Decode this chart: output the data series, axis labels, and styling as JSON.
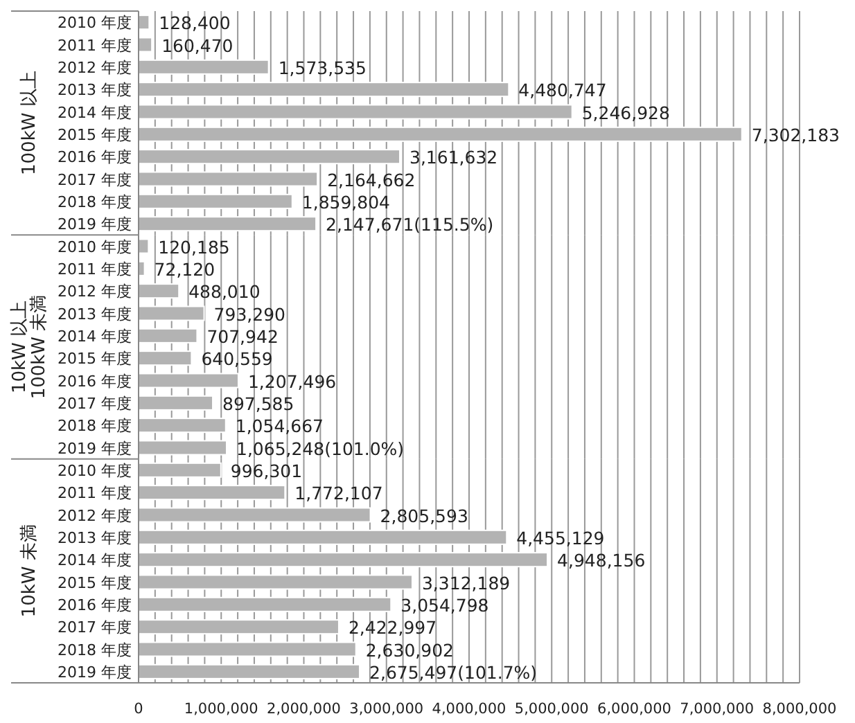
{
  "chart_data": [
    {
      "type": "bar",
      "orientation": "horizontal",
      "ylabel": "100kW 以上",
      "color": "#b3b3b3",
      "grid": "x",
      "tick_labels": "y",
      "categories": [
        "2010 年度",
        "2011 年度",
        "2012 年度",
        "2013 年度",
        "2014 年度",
        "2015 年度",
        "2016 年度",
        "2017 年度",
        "2018 年度",
        "2019 年度"
      ],
      "values": [
        128400,
        160470,
        1573535,
        4480747,
        5246928,
        7302183,
        3161632,
        2164662,
        1859804,
        2147671
      ],
      "value_labels": [
        "128,400",
        "160,470",
        "1,573,535",
        "4,480,747",
        "5,246,928",
        "7,302,183",
        "3,161,632",
        "2,164,662",
        "1,859,804",
        "2,147,671(115.5%)"
      ],
      "xlim": [
        0,
        8000000
      ],
      "xticks": [
        {
          "value": 0,
          "label": null
        },
        {
          "value": 200000,
          "label": null
        },
        {
          "value": 400000,
          "label": null
        },
        {
          "value": 600000,
          "label": null
        },
        {
          "value": 800000,
          "label": null
        },
        {
          "value": 1000000,
          "label": null
        },
        {
          "value": 1200000,
          "label": null
        },
        {
          "value": 1400000,
          "label": null
        },
        {
          "value": 1600000,
          "label": null
        },
        {
          "value": 1800000,
          "label": null
        },
        {
          "value": 2000000,
          "label": null
        },
        {
          "value": 2200000,
          "label": null
        },
        {
          "value": 2400000,
          "label": null
        },
        {
          "value": 2600000,
          "label": null
        },
        {
          "value": 2800000,
          "label": null
        },
        {
          "value": 3000000,
          "label": null
        },
        {
          "value": 3200000,
          "label": null
        },
        {
          "value": 3400000,
          "label": null
        },
        {
          "value": 3600000,
          "label": null
        },
        {
          "value": 3800000,
          "label": null
        },
        {
          "value": 4000000,
          "label": null
        },
        {
          "value": 4200000,
          "label": null
        },
        {
          "value": 4400000,
          "label": null
        },
        {
          "value": 4600000,
          "label": null
        },
        {
          "value": 4800000,
          "label": null
        },
        {
          "value": 5000000,
          "label": null
        },
        {
          "value": 5200000,
          "label": null
        },
        {
          "value": 5400000,
          "label": null
        },
        {
          "value": 5600000,
          "label": null
        },
        {
          "value": 5800000,
          "label": null
        },
        {
          "value": 6000000,
          "label": null
        },
        {
          "value": 6200000,
          "label": null
        },
        {
          "value": 6400000,
          "label": null
        },
        {
          "value": 6600000,
          "label": null
        },
        {
          "value": 6800000,
          "label": null
        },
        {
          "value": 7000000,
          "label": null
        },
        {
          "value": 7200000,
          "label": null
        },
        {
          "value": 7400000,
          "label": null
        },
        {
          "value": 7600000,
          "label": null
        },
        {
          "value": 7800000,
          "label": null
        },
        {
          "value": 8000000,
          "label": null
        }
      ]
    },
    {
      "type": "bar",
      "orientation": "horizontal",
      "ylabel": "10kW 以上\n100kW 未満",
      "color": "#b3b3b3",
      "grid": "x",
      "tick_labels": "y",
      "categories": [
        "2010 年度",
        "2011 年度",
        "2012 年度",
        "2013 年度",
        "2014 年度",
        "2015 年度",
        "2016 年度",
        "2017 年度",
        "2018 年度",
        "2019 年度"
      ],
      "values": [
        120185,
        72120,
        488010,
        793290,
        707942,
        640559,
        1207496,
        897585,
        1054667,
        1065248
      ],
      "value_labels": [
        "120,185",
        "72,120",
        "488,010",
        "793,290",
        "707,942",
        "640,559",
        "1,207,496",
        "897,585",
        "1,054,667",
        "1,065,248(101.0%)"
      ],
      "xlim": [
        0,
        8000000
      ],
      "xticks": [
        {
          "value": 0,
          "label": null
        },
        {
          "value": 200000,
          "label": null
        },
        {
          "value": 400000,
          "label": null
        },
        {
          "value": 600000,
          "label": null
        },
        {
          "value": 800000,
          "label": null
        },
        {
          "value": 1000000,
          "label": null
        },
        {
          "value": 1200000,
          "label": null
        },
        {
          "value": 1400000,
          "label": null
        },
        {
          "value": 1600000,
          "label": null
        },
        {
          "value": 1800000,
          "label": null
        },
        {
          "value": 2000000,
          "label": null
        },
        {
          "value": 2200000,
          "label": null
        },
        {
          "value": 2400000,
          "label": null
        },
        {
          "value": 2600000,
          "label": null
        },
        {
          "value": 2800000,
          "label": null
        },
        {
          "value": 3000000,
          "label": null
        },
        {
          "value": 3200000,
          "label": null
        },
        {
          "value": 3400000,
          "label": null
        },
        {
          "value": 3600000,
          "label": null
        },
        {
          "value": 3800000,
          "label": null
        },
        {
          "value": 4000000,
          "label": null
        },
        {
          "value": 4200000,
          "label": null
        },
        {
          "value": 4400000,
          "label": null
        },
        {
          "value": 4600000,
          "label": null
        },
        {
          "value": 4800000,
          "label": null
        },
        {
          "value": 5000000,
          "label": null
        },
        {
          "value": 5200000,
          "label": null
        },
        {
          "value": 5400000,
          "label": null
        },
        {
          "value": 5600000,
          "label": null
        },
        {
          "value": 5800000,
          "label": null
        },
        {
          "value": 6000000,
          "label": null
        },
        {
          "value": 6200000,
          "label": null
        },
        {
          "value": 6400000,
          "label": null
        },
        {
          "value": 6600000,
          "label": null
        },
        {
          "value": 6800000,
          "label": null
        },
        {
          "value": 7000000,
          "label": null
        },
        {
          "value": 7200000,
          "label": null
        },
        {
          "value": 7400000,
          "label": null
        },
        {
          "value": 7600000,
          "label": null
        },
        {
          "value": 7800000,
          "label": null
        },
        {
          "value": 8000000,
          "label": null
        }
      ]
    },
    {
      "type": "bar",
      "orientation": "horizontal",
      "ylabel": "10kW 未満",
      "color": "#b3b3b3",
      "grid": "x",
      "categories": [
        "2010 年度",
        "2011 年度",
        "2012 年度",
        "2013 年度",
        "2014 年度",
        "2015 年度",
        "2016 年度",
        "2017 年度",
        "2018 年度",
        "2019 年度"
      ],
      "values": [
        996301,
        1772107,
        2805593,
        4455129,
        4948156,
        3312189,
        3054798,
        2422997,
        2630902,
        2675497
      ],
      "value_labels": [
        "996,301",
        "1,772,107",
        "2,805,593",
        "4,455,129",
        "4,948,156",
        "3,312,189",
        "3,054,798",
        "2,422,997",
        "2,630,902",
        "2,675,497(101.7%)"
      ],
      "xlim": [
        0,
        8000000
      ],
      "xticks": [
        0,
        {
          "value": 200000,
          "label": null
        },
        {
          "value": 400000,
          "label": null
        },
        {
          "value": 600000,
          "label": null
        },
        {
          "value": 800000,
          "label": null
        },
        {
          "value": 1000000,
          "label": "1,000,000"
        },
        {
          "value": 1200000,
          "label": null
        },
        {
          "value": 1400000,
          "label": null
        },
        {
          "value": 1600000,
          "label": null
        },
        {
          "value": 1800000,
          "label": null
        },
        {
          "value": 2000000,
          "label": "2,000,000"
        },
        {
          "value": 2200000,
          "label": null
        },
        {
          "value": 2400000,
          "label": null
        },
        {
          "value": 2600000,
          "label": null
        },
        {
          "value": 2800000,
          "label": null
        },
        {
          "value": 3000000,
          "label": "3,000,000"
        },
        {
          "value": 3200000,
          "label": null
        },
        {
          "value": 3400000,
          "label": null
        },
        {
          "value": 3600000,
          "label": null
        },
        {
          "value": 3800000,
          "label": null
        },
        {
          "value": 4000000,
          "label": "4,000,000"
        },
        {
          "value": 4200000,
          "label": null
        },
        {
          "value": 4400000,
          "label": null
        },
        {
          "value": 4600000,
          "label": null
        },
        {
          "value": 4800000,
          "label": null
        },
        {
          "value": 5000000,
          "label": "5,000,000"
        },
        {
          "value": 5200000,
          "label": null
        },
        {
          "value": 5400000,
          "label": null
        },
        {
          "value": 5600000,
          "label": null
        },
        {
          "value": 5800000,
          "label": null
        },
        {
          "value": 6000000,
          "label": "6,000,000"
        },
        {
          "value": 6200000,
          "label": null
        },
        {
          "value": 6400000,
          "label": null
        },
        {
          "value": 6600000,
          "label": null
        },
        {
          "value": 6800000,
          "label": null
        },
        {
          "value": 7000000,
          "label": "7,000,000"
        },
        {
          "value": 7200000,
          "label": null
        },
        {
          "value": 7400000,
          "label": null
        },
        {
          "value": 7600000,
          "label": null
        },
        {
          "value": 7800000,
          "label": null
        },
        {
          "value": 8000000,
          "label": "8,000,000"
        }
      ]
    }
  ]
}
